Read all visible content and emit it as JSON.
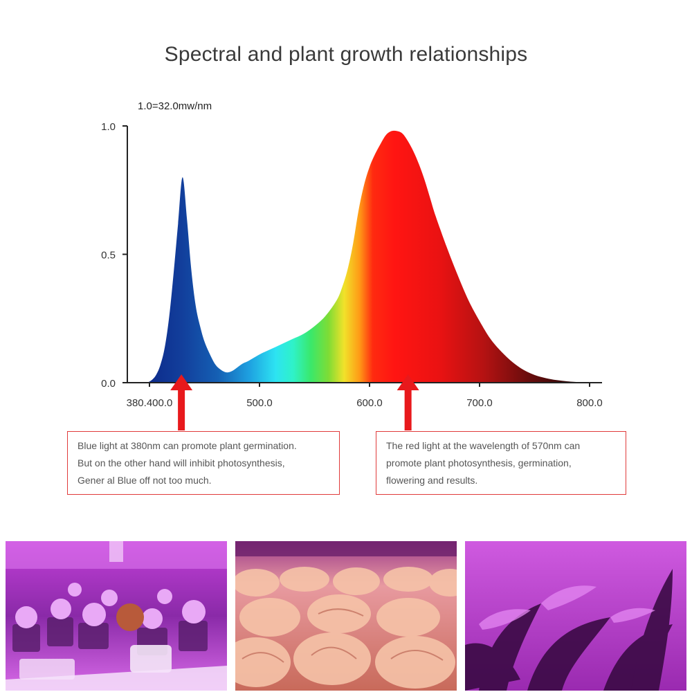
{
  "title": "Spectral and plant growth relationships",
  "unit_label": "1.0=32.0mw/nm",
  "notes": {
    "blue": [
      "Blue light at 380nm can promote plant germination.",
      "But on the other hand will inhibit photosynthesis,",
      "Gener al Blue off not too much."
    ],
    "red": [
      "The red light at the wavelength of 570nm can",
      "promote plant photosynthesis, germination,",
      "flowering and results."
    ]
  },
  "chart_data": {
    "type": "area",
    "xlim": [
      380,
      800
    ],
    "ylim": [
      0,
      1
    ],
    "y_ticks": [
      {
        "value": 0,
        "label": "0.0"
      },
      {
        "value": 0.5,
        "label": "0.5"
      },
      {
        "value": 1,
        "label": "1.0"
      }
    ],
    "x_ticks": [
      {
        "value": 400,
        "label": "380.400.0"
      },
      {
        "value": 500,
        "label": "500.0"
      },
      {
        "value": 600,
        "label": "600.0"
      },
      {
        "value": 700,
        "label": "700.0"
      },
      {
        "value": 800,
        "label": "800.0"
      }
    ],
    "series": [
      {
        "x": [
          398,
          402,
          406,
          410,
          414,
          418,
          422,
          426,
          430,
          434,
          438,
          442,
          446,
          450,
          455,
          460,
          465,
          470,
          475,
          480,
          485,
          490,
          500,
          510,
          520,
          530,
          540,
          550,
          560,
          570,
          575,
          580,
          585,
          590,
          595,
          600,
          605,
          610,
          615,
          620,
          625,
          630,
          635,
          640,
          645,
          650,
          655,
          660,
          670,
          680,
          690,
          700,
          710,
          720,
          730,
          740,
          750,
          760,
          770,
          780,
          790,
          795,
          800
        ],
        "y": [
          0.0,
          0.01,
          0.03,
          0.07,
          0.14,
          0.26,
          0.43,
          0.62,
          0.8,
          0.64,
          0.44,
          0.3,
          0.22,
          0.16,
          0.11,
          0.07,
          0.05,
          0.04,
          0.045,
          0.06,
          0.075,
          0.085,
          0.11,
          0.13,
          0.15,
          0.17,
          0.19,
          0.22,
          0.26,
          0.32,
          0.37,
          0.44,
          0.54,
          0.67,
          0.77,
          0.84,
          0.89,
          0.93,
          0.965,
          0.98,
          0.98,
          0.97,
          0.94,
          0.9,
          0.85,
          0.79,
          0.72,
          0.65,
          0.53,
          0.42,
          0.32,
          0.24,
          0.17,
          0.12,
          0.08,
          0.05,
          0.03,
          0.018,
          0.01,
          0.005,
          0.002,
          0.001,
          0.0
        ]
      }
    ]
  },
  "annotations": {
    "arrows": [
      {
        "wavelength": 429,
        "color": "#e8191c"
      },
      {
        "wavelength": 635,
        "color": "#e8191c"
      }
    ]
  },
  "colors": {
    "accent_red": "#e8191c",
    "box_border": "#e03a3a",
    "spectrum": [
      {
        "at": 0.0,
        "color": "#0d2a8a"
      },
      {
        "at": 0.08,
        "color": "#123f9c"
      },
      {
        "at": 0.16,
        "color": "#1560b4"
      },
      {
        "at": 0.23,
        "color": "#1ea0e0"
      },
      {
        "at": 0.29,
        "color": "#2de3f2"
      },
      {
        "at": 0.33,
        "color": "#2ff2c8"
      },
      {
        "at": 0.37,
        "color": "#3ae86a"
      },
      {
        "at": 0.41,
        "color": "#7fdc35"
      },
      {
        "at": 0.445,
        "color": "#f1e22a"
      },
      {
        "at": 0.48,
        "color": "#ff9a16"
      },
      {
        "at": 0.51,
        "color": "#ff2a10"
      },
      {
        "at": 0.56,
        "color": "#ff1512"
      },
      {
        "at": 0.66,
        "color": "#ea1212"
      },
      {
        "at": 0.76,
        "color": "#b51212"
      },
      {
        "at": 0.86,
        "color": "#6a0d0d"
      },
      {
        "at": 0.94,
        "color": "#3a0909"
      },
      {
        "at": 1.0,
        "color": "#210606"
      }
    ]
  },
  "photos": [
    {
      "subject": "succulents-under-purple-grow-light",
      "tint": "#b42bd1"
    },
    {
      "subject": "lettuce-rows-under-grow-light",
      "tint": "#e07a8a"
    },
    {
      "subject": "houseplant-leaves-under-purple-light",
      "tint": "#9a1fb0"
    }
  ]
}
